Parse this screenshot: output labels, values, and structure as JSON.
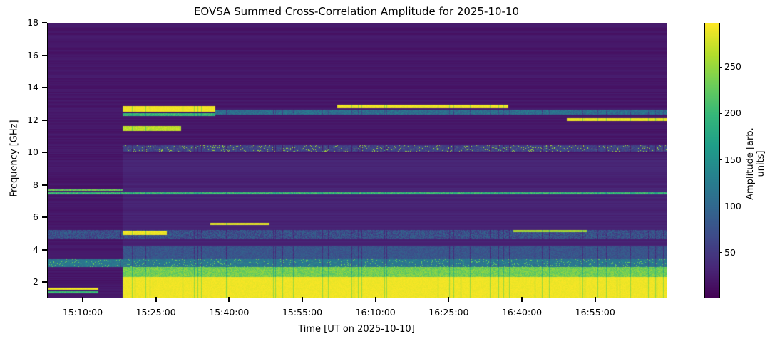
{
  "chart_data": {
    "type": "heatmap",
    "title": "EOVSA Summed Cross-Correlation Amplitude for 2025-10-10",
    "xlabel": "Time [UT on 2025-10-10]",
    "ylabel": "Frequency [GHz]",
    "colorbar_label": "Amplitude [arb. units]",
    "colormap": "viridis",
    "xlim_minutes_after_1500": [
      2.7,
      129.5
    ],
    "ylim": [
      1.1,
      18
    ],
    "clim": [
      2,
      298
    ],
    "xticks": [
      {
        "label": "15:10:00",
        "min": 10
      },
      {
        "label": "15:25:00",
        "min": 25
      },
      {
        "label": "15:40:00",
        "min": 40
      },
      {
        "label": "15:55:00",
        "min": 55
      },
      {
        "label": "16:10:00",
        "min": 70
      },
      {
        "label": "16:25:00",
        "min": 85
      },
      {
        "label": "16:40:00",
        "min": 100
      },
      {
        "label": "16:55:00",
        "min": 115
      }
    ],
    "yticks": [
      {
        "label": "2",
        "v": 2
      },
      {
        "label": "4",
        "v": 4
      },
      {
        "label": "6",
        "v": 6
      },
      {
        "label": "8",
        "v": 8
      },
      {
        "label": "10",
        "v": 10
      },
      {
        "label": "12",
        "v": 12
      },
      {
        "label": "14",
        "v": 14
      },
      {
        "label": "16",
        "v": 16
      },
      {
        "label": "18",
        "v": 18
      }
    ],
    "cticks": [
      {
        "label": "50",
        "v": 50
      },
      {
        "label": "100",
        "v": 100
      },
      {
        "label": "150",
        "v": 150
      },
      {
        "label": "200",
        "v": 200
      },
      {
        "label": "250",
        "v": 250
      }
    ],
    "background_amplitude": 15,
    "features": [
      {
        "f": [
          1.1,
          2.4
        ],
        "t": [
          17.9,
          129.5
        ],
        "amp": 292,
        "noise": 10
      },
      {
        "f": [
          2.4,
          3.0
        ],
        "t": [
          17.9,
          129.5
        ],
        "amp": 235,
        "noise": 40
      },
      {
        "f": [
          1.1,
          1.3
        ],
        "t": [
          17.9,
          129.5
        ],
        "amp": 240,
        "noise": 40
      },
      {
        "f": [
          1.6,
          1.72
        ],
        "t": [
          2.7,
          13
        ],
        "amp": 290,
        "noise": 10
      },
      {
        "f": [
          1.4,
          1.5
        ],
        "t": [
          2.7,
          13
        ],
        "amp": 200,
        "noise": 30
      },
      {
        "f": [
          3.0,
          3.5
        ],
        "t": [
          2.7,
          129.5
        ],
        "amp": 120,
        "noise": 110
      },
      {
        "f": [
          3.5,
          4.3
        ],
        "t": [
          17.9,
          129.5
        ],
        "amp": 80,
        "noise": 30
      },
      {
        "f": [
          4.7,
          5.3
        ],
        "t": [
          2.7,
          129.5
        ],
        "amp": 75,
        "noise": 60
      },
      {
        "f": [
          5.0,
          5.25
        ],
        "t": [
          17.9,
          27
        ],
        "amp": 290,
        "noise": 15
      },
      {
        "f": [
          5.15,
          5.3
        ],
        "t": [
          98,
          113
        ],
        "amp": 260,
        "noise": 20
      },
      {
        "f": [
          5.6,
          5.75
        ],
        "t": [
          36,
          48
        ],
        "amp": 285,
        "noise": 15
      },
      {
        "f": [
          7.5,
          7.62
        ],
        "t": [
          2.7,
          129.5
        ],
        "amp": 200,
        "noise": 50
      },
      {
        "f": [
          7.7,
          7.78
        ],
        "t": [
          2.7,
          17.9
        ],
        "amp": 230,
        "noise": 40
      },
      {
        "f": [
          10.1,
          10.5
        ],
        "t": [
          17.9,
          129.5
        ],
        "amp": 60,
        "noise": 200
      },
      {
        "f": [
          12.6,
          12.95
        ],
        "t": [
          17.9,
          37
        ],
        "amp": 292,
        "noise": 10
      },
      {
        "f": [
          12.3,
          12.5
        ],
        "t": [
          17.9,
          37
        ],
        "amp": 200,
        "noise": 40
      },
      {
        "f": [
          11.4,
          11.7
        ],
        "t": [
          17.9,
          30
        ],
        "amp": 270,
        "noise": 25
      },
      {
        "f": [
          12.8,
          13.0
        ],
        "t": [
          62,
          97
        ],
        "amp": 290,
        "noise": 12
      },
      {
        "f": [
          12.4,
          12.7
        ],
        "t": [
          37,
          129.5
        ],
        "amp": 110,
        "noise": 50
      },
      {
        "f": [
          12.0,
          12.2
        ],
        "t": [
          109,
          129.5
        ],
        "amp": 290,
        "noise": 12
      }
    ]
  }
}
